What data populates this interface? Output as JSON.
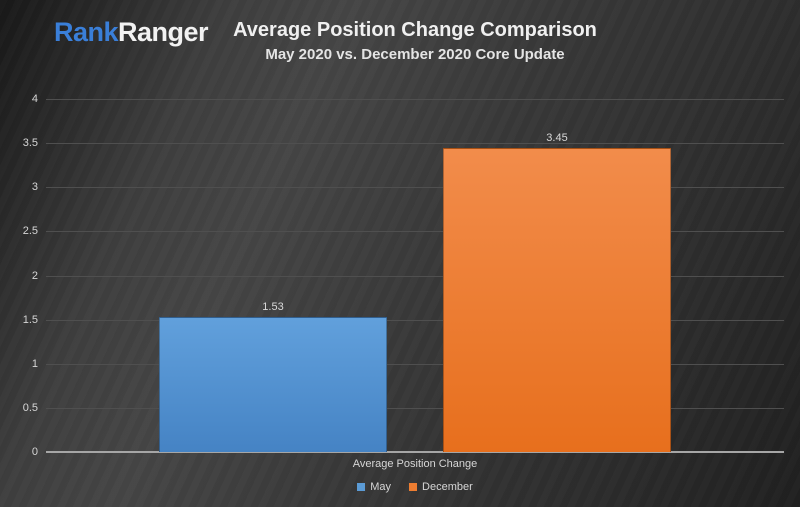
{
  "brand": {
    "logo_rank": "Rank",
    "logo_ranger": "Ranger",
    "rank_color": "#3a7fd9",
    "ranger_color": "#f2f2f2"
  },
  "header": {
    "title": "Average Position Change Comparison",
    "subtitle": "May 2020 vs. December 2020 Core Update"
  },
  "chart_data": {
    "type": "bar",
    "title": "Average Position Change Comparison",
    "subtitle": "May 2020 vs. December 2020 Core Update",
    "categories": [
      "Average Position Change"
    ],
    "series": [
      {
        "name": "May",
        "values": [
          1.53
        ],
        "color": "#5b9bd5",
        "gradient_top": "#61a0dc",
        "gradient_bottom": "#4583c4"
      },
      {
        "name": "December",
        "values": [
          3.45
        ],
        "color": "#ed7d31",
        "gradient_top": "#f28c4b",
        "gradient_bottom": "#e76f1d"
      }
    ],
    "xlabel": "Average Position Change",
    "ylabel": "",
    "ylim": [
      0,
      4
    ],
    "yticks": [
      0,
      0.5,
      1,
      1.5,
      2,
      2.5,
      3,
      3.5,
      4
    ],
    "grid": true,
    "legend_position": "bottom",
    "value_label_color": "#d9d9d9",
    "tick_label_color": "#d6d6d6",
    "gridline_color": "#4f4f4f",
    "axis_color": "#a6a6a6"
  },
  "legend": {
    "items": [
      {
        "label": "May",
        "color": "#5b9bd5"
      },
      {
        "label": "December",
        "color": "#ed7d31"
      }
    ]
  }
}
